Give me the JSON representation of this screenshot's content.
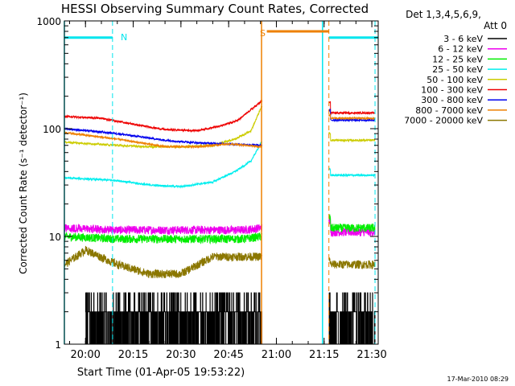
{
  "chart_data": {
    "type": "line",
    "title": "HESSI Observing Summary Count Rates, Corrected",
    "xlabel": "Start Time (01-Apr-05 19:53:22)",
    "ylabel": "Corrected Count Rate (s⁻¹ detector⁻¹)",
    "ylog": true,
    "ylim": [
      1,
      1000
    ],
    "xlim": [
      "19:53:22",
      "21:32:00"
    ],
    "x_ticks": [
      "20:00",
      "20:15",
      "20:30",
      "20:45",
      "21:00",
      "21:15",
      "21:30"
    ],
    "y_ticks": [
      "1",
      "10",
      "100",
      "1000"
    ],
    "legend_header": [
      "Det 1,3,4,5,6,9,",
      "Att 0"
    ],
    "legend_position": "right",
    "footer_date": "17-Mar-2010 08:29",
    "flag_labels": [
      {
        "label": "N",
        "color": "#00e5ee"
      },
      {
        "label": "S",
        "color": "#ee8000"
      }
    ],
    "flags": [
      {
        "name": "night",
        "color": "#00e5ee",
        "level": 700,
        "intervals": [
          [
            "19:53:22",
            "20:08:30"
          ],
          [
            "21:16:30",
            "21:32:00"
          ]
        ],
        "boundaries_solid": [
          "19:53:22",
          "21:14:30"
        ],
        "boundaries_dashed": [
          "20:08:30",
          "21:31:00"
        ]
      },
      {
        "name": "saa",
        "color": "#ee8000",
        "level": 800,
        "intervals": [
          [
            "20:57:00",
            "21:16:30"
          ]
        ],
        "boundaries_solid": [
          "20:55:20"
        ],
        "boundaries_dashed": [
          "21:16:30"
        ]
      }
    ],
    "gap": [
      "20:55:30",
      "21:16:30"
    ],
    "series": [
      {
        "name": "3 - 6 keV",
        "color": "#000000",
        "noise": "binary",
        "values": {
          "20:00": 1.5,
          "20:30": 1.5,
          "20:55": 1.5,
          "21:17": 1.5,
          "21:31": 1.5
        }
      },
      {
        "name": "6 - 12 keV",
        "color": "#ee00ee",
        "values": {
          "19:53:30": 12,
          "20:10": 11.5,
          "20:30": 11.5,
          "20:50": 11.5,
          "20:55": 12,
          "21:17": 14,
          "21:31": 11
        }
      },
      {
        "name": "12 - 25 keV",
        "color": "#00ee00",
        "values": {
          "19:53:30": 10,
          "20:10": 9.5,
          "20:30": 9.5,
          "20:50": 9.5,
          "20:55": 10,
          "21:17": 15,
          "21:31": 12
        }
      },
      {
        "name": "25 - 50 keV",
        "color": "#00eeee",
        "values": {
          "19:53:30": 35,
          "20:10": 33,
          "20:20": 30,
          "20:30": 29,
          "20:40": 32,
          "20:47": 40,
          "20:52": 50,
          "20:55:20": 75,
          "21:17": 42,
          "21:31": 37
        }
      },
      {
        "name": "50 - 100 keV",
        "color": "#cccc00",
        "values": {
          "19:53:30": 75,
          "20:10": 70,
          "20:20": 68,
          "20:30": 68,
          "20:40": 70,
          "20:47": 80,
          "20:52": 95,
          "20:55:20": 160,
          "21:17": 90,
          "21:31": 78
        }
      },
      {
        "name": "100 - 300 keV",
        "color": "#ee0000",
        "values": {
          "19:53:30": 130,
          "20:05": 125,
          "20:15": 110,
          "20:25": 98,
          "20:35": 96,
          "20:42": 105,
          "20:48": 120,
          "20:55:20": 180,
          "21:17": 175,
          "21:31": 140
        }
      },
      {
        "name": "300 - 800 keV",
        "color": "#0000ee",
        "values": {
          "19:53:30": 100,
          "20:10": 90,
          "20:25": 78,
          "20:35": 74,
          "20:45": 72,
          "20:55:20": 70,
          "21:17": 150,
          "21:31": 120
        }
      },
      {
        "name": "800 - 7000 keV",
        "color": "#ee8000",
        "values": {
          "19:53:30": 92,
          "20:10": 80,
          "20:25": 68,
          "20:35": 68,
          "20:45": 72,
          "20:55:20": 68,
          "21:17": 135,
          "21:31": 125
        }
      },
      {
        "name": "7000 - 20000 keV",
        "color": "#8b7700",
        "values": {
          "19:53:30": 5.5,
          "20:00": 7.5,
          "20:10": 5.5,
          "20:20": 4.5,
          "20:30": 4.5,
          "20:40": 6.5,
          "20:55": 6.5,
          "21:17": 6,
          "21:31": 5.5
        }
      }
    ]
  }
}
